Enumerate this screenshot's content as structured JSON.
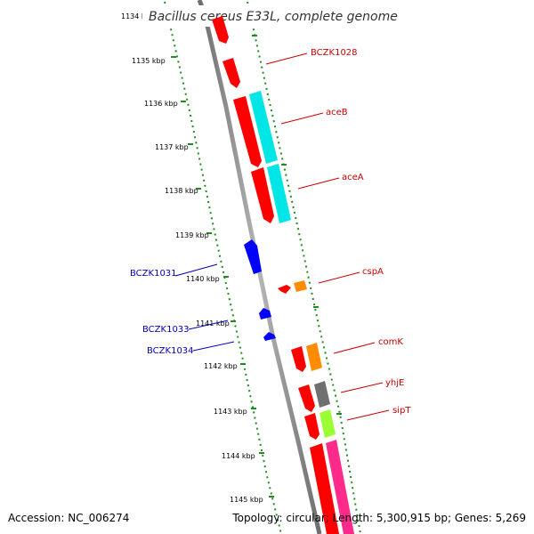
{
  "title": "Bacillus cereus E33L, complete genome",
  "footer": {
    "accession": "Accession: NC_006274",
    "summary": "Topology: circular; Length: 5,300,915 bp; Genes: 5,269"
  },
  "colors": {
    "backbone": "#8a8a8a",
    "ruler": "#228B22",
    "forward_label": "#cc0000",
    "reverse_label": "#0000bb"
  },
  "ticks": [
    "1134 kbp",
    "1135 kbp",
    "1136 kbp",
    "1137 kbp",
    "1138 kbp",
    "1139 kbp",
    "1140 kbp",
    "1141 kbp",
    "1142 kbp",
    "1143 kbp",
    "1144 kbp",
    "1145 kbp"
  ],
  "labels": {
    "bczk1028": "BCZK1028",
    "aceB": "aceB",
    "aceA": "aceA",
    "cspA": "cspA",
    "comK": "comK",
    "yhjE": "yhjE",
    "sipT": "sipT",
    "bczk1031": "BCZK1031",
    "bczk1033": "BCZK1033",
    "bczk1034": "BCZK1034"
  },
  "cog_colors": {
    "red": "#ff0000",
    "cyan": "#00e5e5",
    "orange": "#ff8c00",
    "blue": "#0000ff",
    "gray": "#707070",
    "lime": "#99ff33",
    "pink": "#ff2a8a"
  }
}
